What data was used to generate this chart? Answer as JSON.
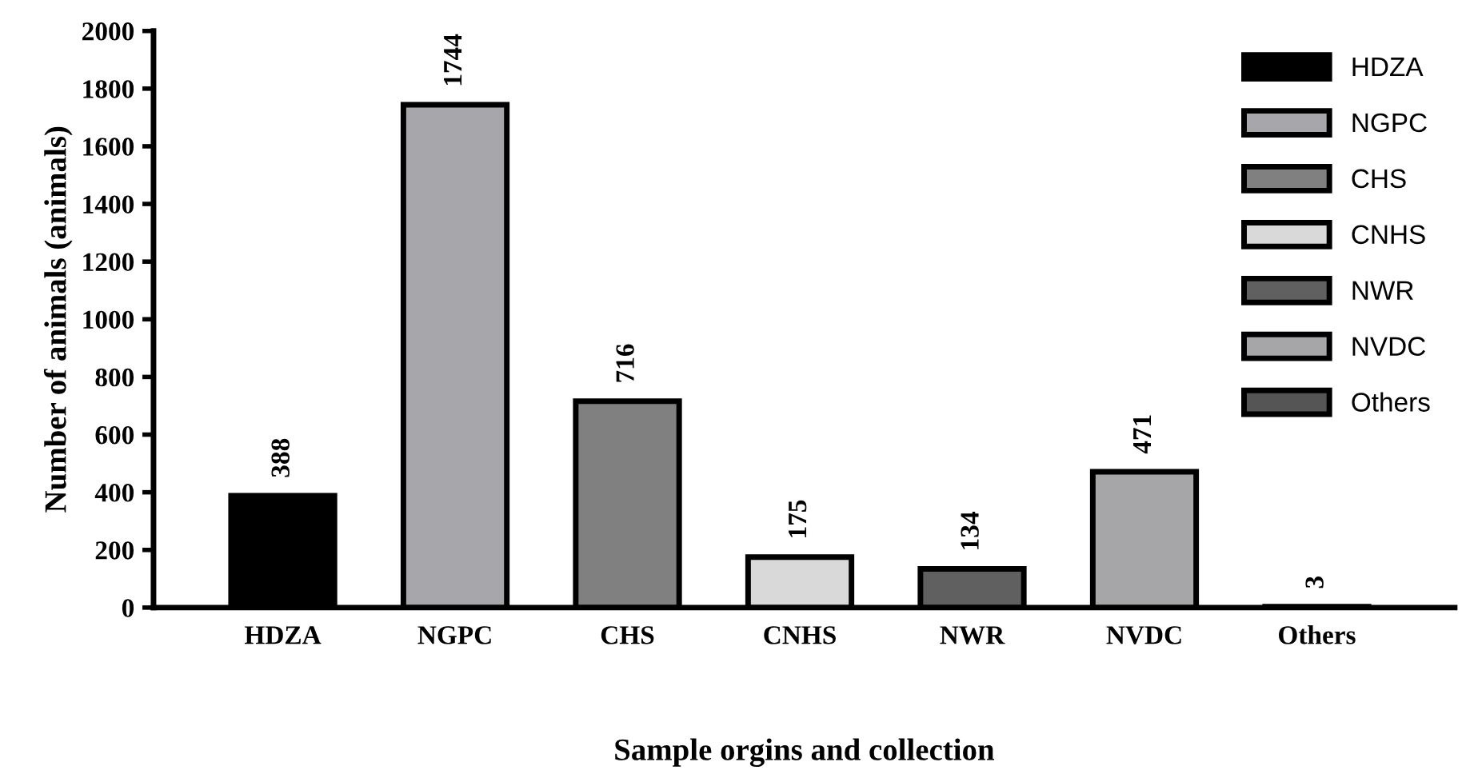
{
  "chart_data": {
    "type": "bar",
    "xlabel": "Sample orgins and collection",
    "ylabel": "Number of animals (animals)",
    "categories": [
      "HDZA",
      "NGPC",
      "CHS",
      "CNHS",
      "NWR",
      "NVDC",
      "Others"
    ],
    "series": [
      {
        "name": "HDZA",
        "color": "#000000",
        "values": [
          388,
          null,
          null,
          null,
          null,
          null,
          null
        ]
      },
      {
        "name": "NGPC",
        "color": "#a7a6ab",
        "values": [
          null,
          1744,
          null,
          null,
          null,
          null,
          null
        ]
      },
      {
        "name": "CHS",
        "color": "#808080",
        "values": [
          null,
          null,
          716,
          null,
          null,
          null,
          null
        ]
      },
      {
        "name": "CNHS",
        "color": "#d9d9d9",
        "values": [
          null,
          null,
          null,
          175,
          null,
          null,
          null
        ]
      },
      {
        "name": "NWR",
        "color": "#606060",
        "values": [
          null,
          null,
          null,
          null,
          134,
          null,
          null
        ]
      },
      {
        "name": "NVDC",
        "color": "#a6a6a9",
        "values": [
          null,
          null,
          null,
          null,
          null,
          471,
          null
        ]
      },
      {
        "name": "Others",
        "color": "#555555",
        "values": [
          null,
          null,
          null,
          null,
          null,
          null,
          3
        ]
      }
    ],
    "ylim": [
      0,
      2000
    ],
    "yticks": [
      0,
      200,
      400,
      600,
      800,
      1000,
      1200,
      1400,
      1600,
      1800,
      2000
    ],
    "data_labels": true,
    "legend": "top right",
    "grid": false
  }
}
